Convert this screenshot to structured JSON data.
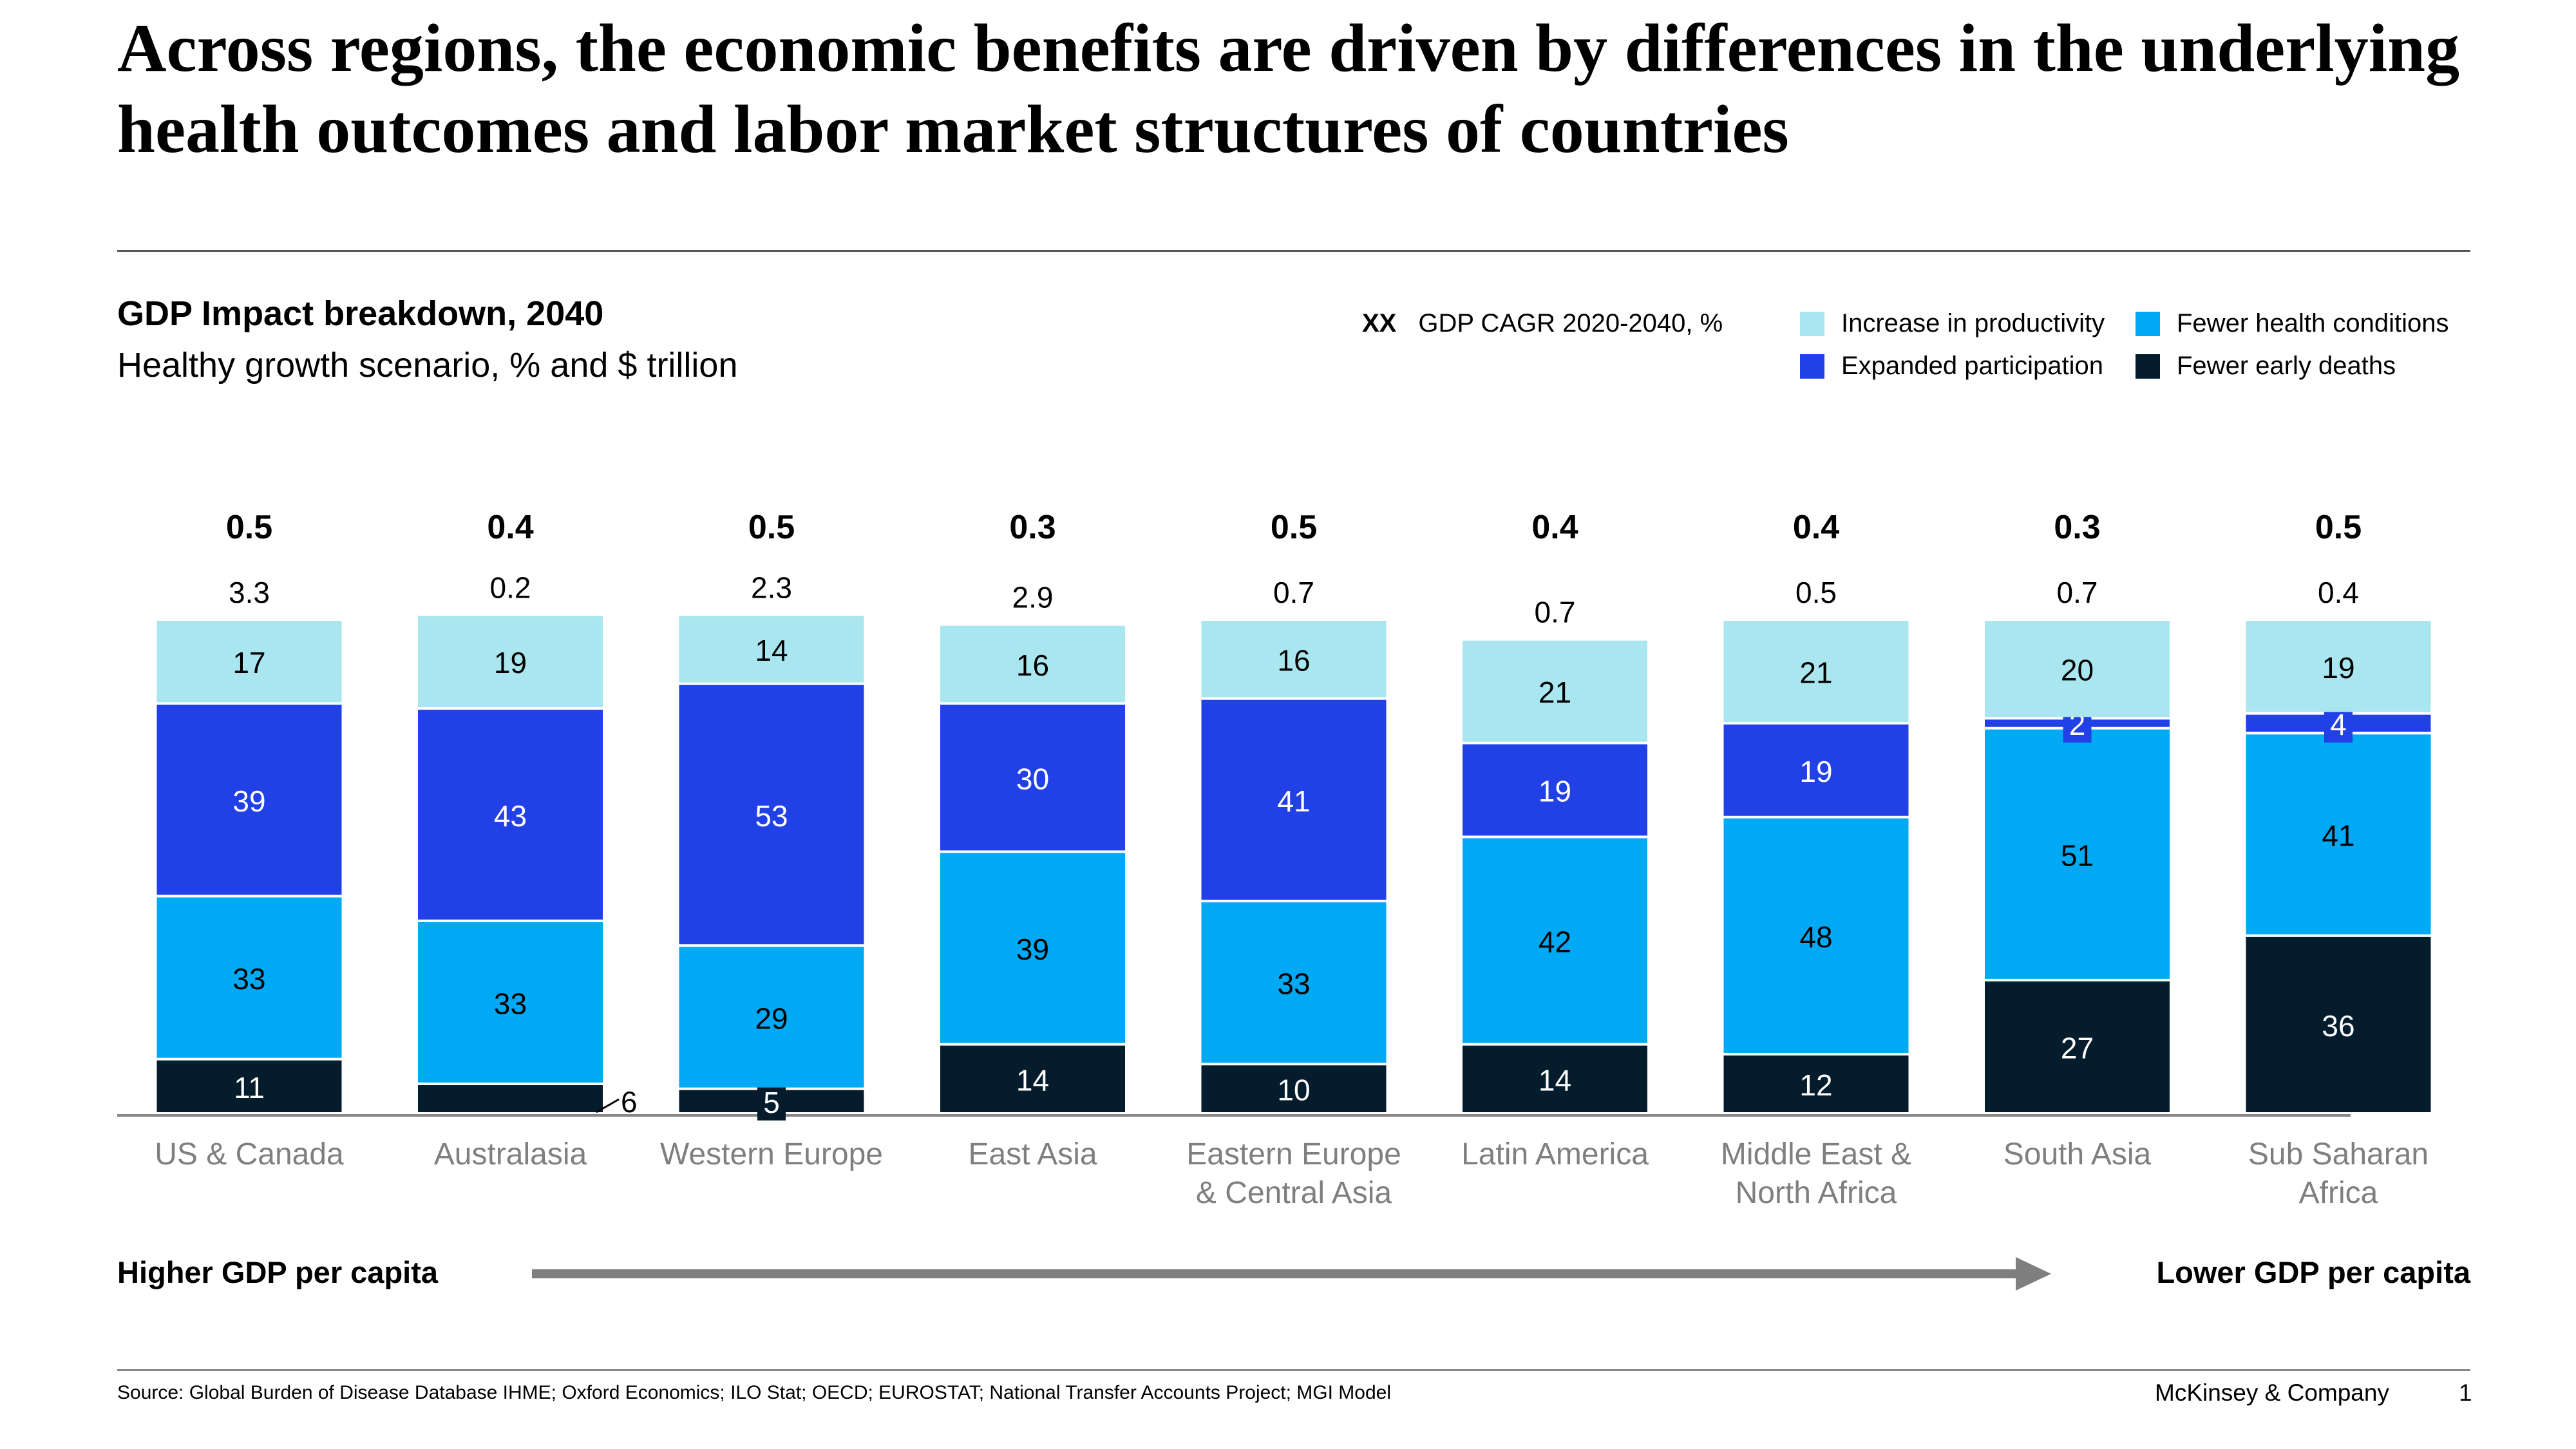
{
  "title": "Across regions, the economic benefits are driven by differences in the underlying health outcomes and labor market structures of countries",
  "chart_data": {
    "type": "bar",
    "stacked": true,
    "title": "GDP Impact breakdown, 2040",
    "subtitle": "Healthy growth scenario, % and $ trillion",
    "categories": [
      [
        "US & Canada"
      ],
      [
        "Australasia"
      ],
      [
        "Western Europe"
      ],
      [
        "East Asia"
      ],
      [
        "Eastern Europe",
        "& Central Asia"
      ],
      [
        "Latin America"
      ],
      [
        "Middle East &",
        "North Africa"
      ],
      [
        "South Asia"
      ],
      [
        "Sub Saharan",
        "Africa"
      ]
    ],
    "cagr_legend_marker": "XX",
    "cagr_legend_label": "GDP CAGR 2020-2040, %",
    "cagr": [
      "0.5",
      "0.4",
      "0.5",
      "0.3",
      "0.5",
      "0.4",
      "0.4",
      "0.3",
      "0.5"
    ],
    "totals_trillion": [
      "3.3",
      "0.2",
      "2.3",
      "2.9",
      "0.7",
      "0.7",
      "0.5",
      "0.7",
      "0.4"
    ],
    "series": [
      {
        "name": "Fewer early deaths",
        "color": "#051c2c",
        "values": [
          11,
          6,
          5,
          14,
          10,
          14,
          12,
          27,
          36
        ]
      },
      {
        "name": "Fewer health conditions",
        "color": "#00a9f4",
        "values": [
          33,
          33,
          29,
          39,
          33,
          42,
          48,
          51,
          41
        ]
      },
      {
        "name": "Expanded participation",
        "color": "#2140e6",
        "values": [
          39,
          43,
          53,
          30,
          41,
          19,
          19,
          2,
          4
        ]
      },
      {
        "name": "Increase in productivity",
        "color": "#aae6ef",
        "values": [
          17,
          19,
          14,
          16,
          16,
          21,
          21,
          20,
          19
        ]
      }
    ],
    "legend_position": "top-right",
    "grid": false
  },
  "arrow": {
    "left_label": "Higher GDP per capita",
    "right_label": "Lower GDP per capita"
  },
  "footer": {
    "source": "Source: Global Burden of Disease Database IHME; Oxford Economics; ILO Stat; OECD; EUROSTAT; National Transfer Accounts Project; MGI Model",
    "brand": "McKinsey & Company",
    "page": "1"
  }
}
